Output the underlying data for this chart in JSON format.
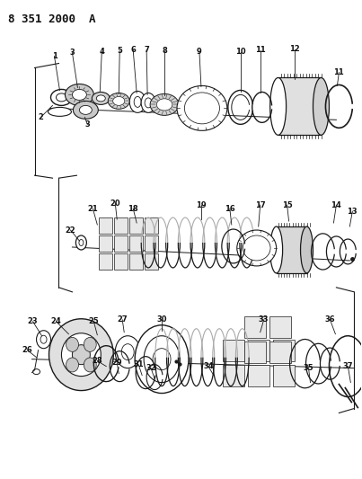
{
  "title": "8 351 2000  A",
  "bg_color": "#ffffff",
  "line_color": "#1a1a1a",
  "label_color": "#111111",
  "fig_width": 4.03,
  "fig_height": 5.33,
  "dpi": 100
}
